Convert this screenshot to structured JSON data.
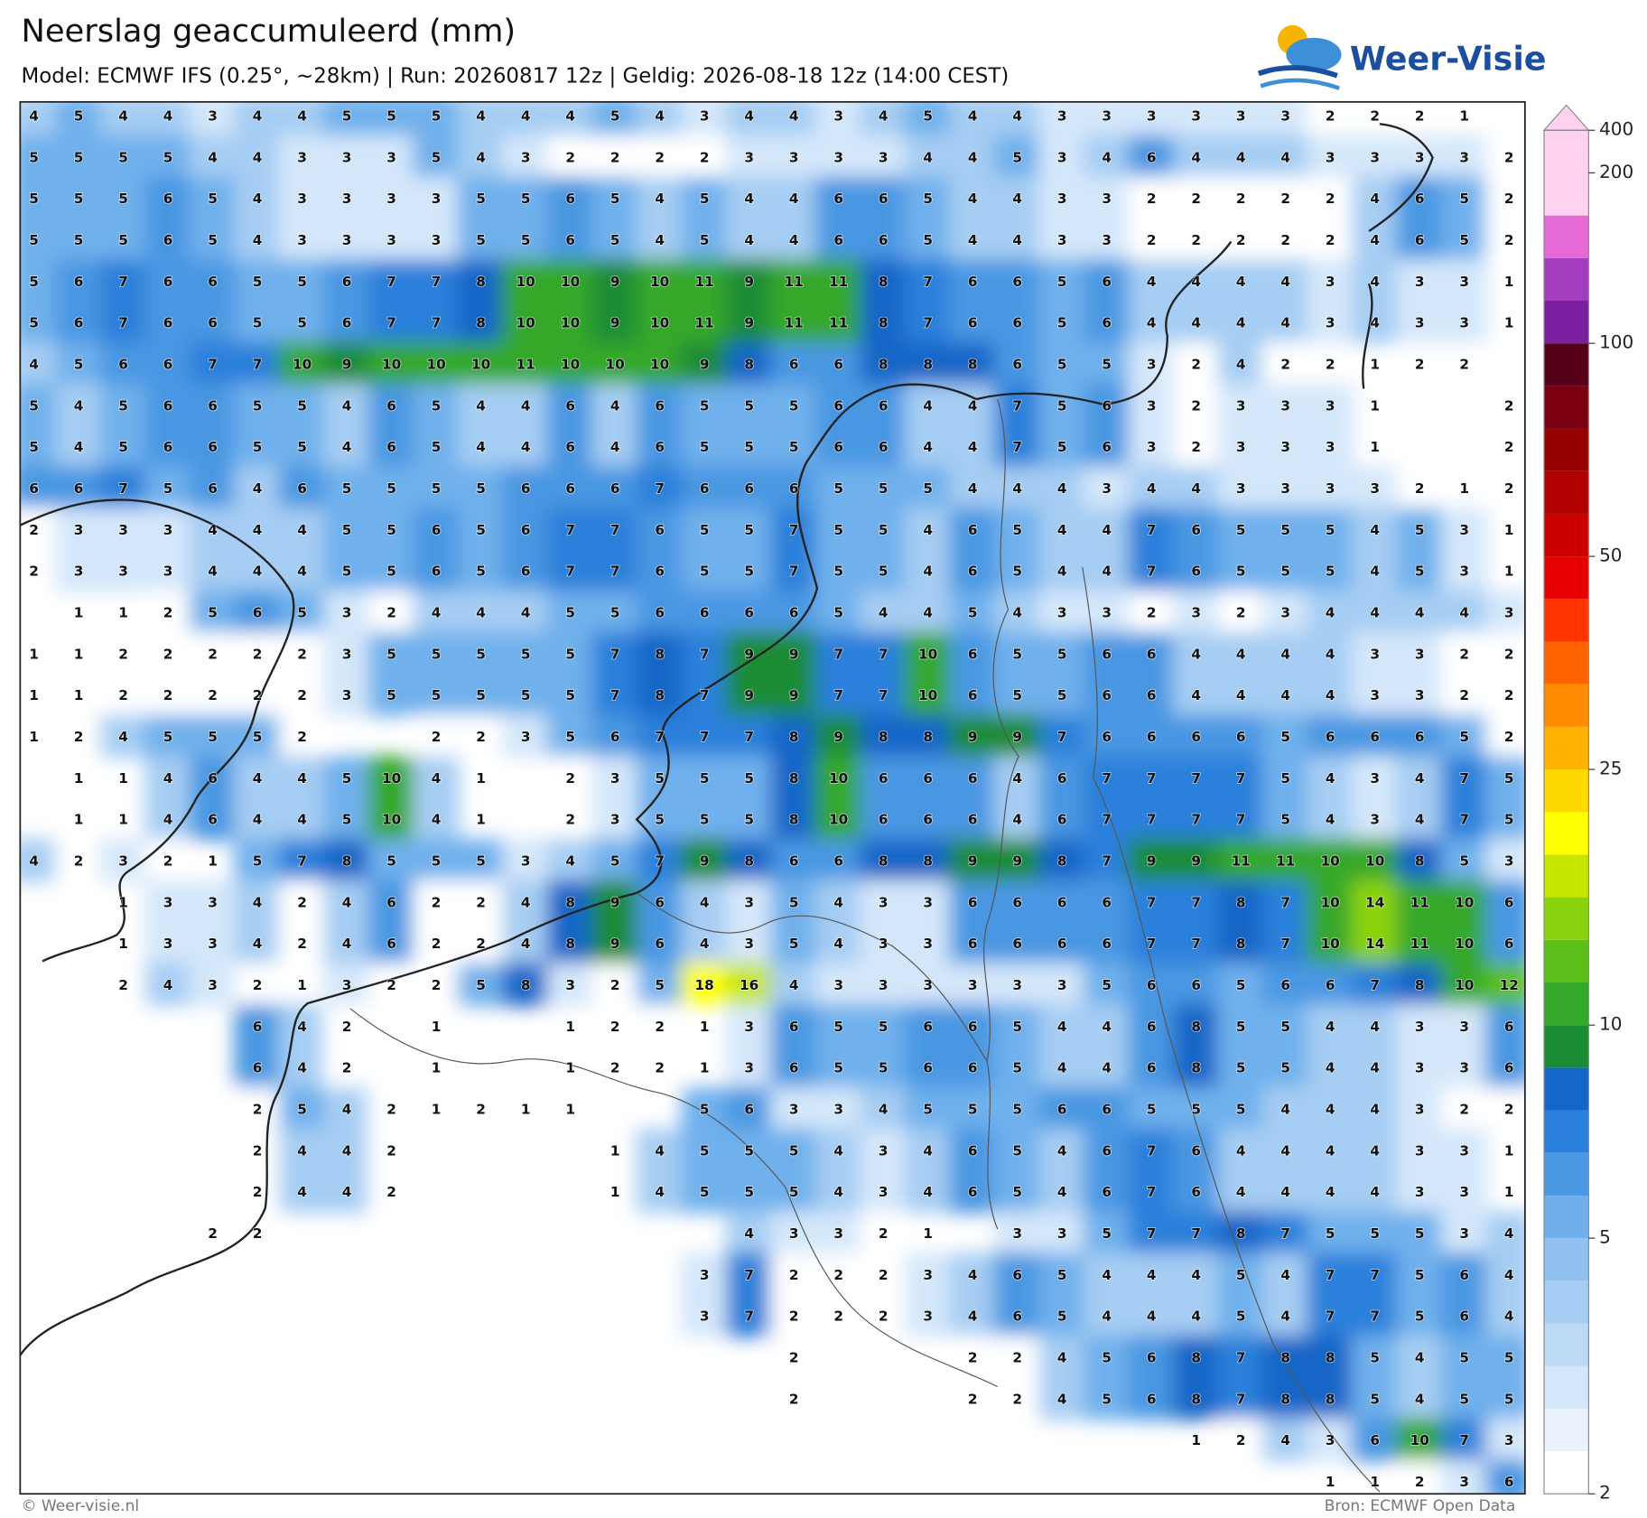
{
  "header": {
    "title": "Neerslag geaccumuleerd (mm)",
    "subtitle": "Model: ECMWF IFS (0.25°, ~28km)  |  Run: 20260817 12z  |  Geldig: 2026-08-18 12z (14:00 CEST)",
    "logo": "Weer-Visie"
  },
  "map": {
    "rows": [
      [
        4,
        5,
        4,
        4,
        3,
        4,
        4,
        5,
        5,
        5,
        4,
        4,
        4,
        5,
        4,
        3,
        4,
        4,
        3,
        4,
        5,
        4,
        4,
        3,
        3,
        3,
        3,
        3,
        3,
        2,
        2,
        2,
        1,
        null
      ],
      [
        5,
        5,
        5,
        5,
        4,
        4,
        3,
        3,
        3,
        5,
        4,
        3,
        2,
        2,
        2,
        2,
        3,
        3,
        3,
        3,
        4,
        4,
        5,
        3,
        4,
        6,
        4,
        4,
        4,
        3,
        3,
        3,
        3,
        2
      ],
      [
        5,
        5,
        5,
        6,
        5,
        4,
        3,
        3,
        3,
        3,
        5,
        5,
        6,
        5,
        4,
        5,
        4,
        4,
        6,
        6,
        5,
        4,
        4,
        3,
        3,
        2,
        2,
        2,
        2,
        2,
        4,
        6,
        5,
        2
      ],
      [
        5,
        5,
        5,
        6,
        5,
        4,
        3,
        3,
        3,
        3,
        5,
        5,
        6,
        5,
        4,
        5,
        4,
        4,
        6,
        6,
        5,
        4,
        4,
        3,
        3,
        2,
        2,
        2,
        2,
        2,
        4,
        6,
        5,
        2
      ],
      [
        5,
        6,
        7,
        6,
        6,
        5,
        5,
        6,
        7,
        7,
        8,
        10,
        10,
        9,
        10,
        11,
        9,
        11,
        11,
        8,
        7,
        6,
        6,
        5,
        6,
        4,
        4,
        4,
        4,
        3,
        4,
        3,
        3,
        1
      ],
      [
        5,
        6,
        7,
        6,
        6,
        5,
        5,
        6,
        7,
        7,
        8,
        10,
        10,
        9,
        10,
        11,
        9,
        11,
        11,
        8,
        7,
        6,
        6,
        5,
        6,
        4,
        4,
        4,
        4,
        3,
        4,
        3,
        3,
        1
      ],
      [
        4,
        5,
        6,
        6,
        7,
        7,
        10,
        9,
        10,
        10,
        10,
        11,
        10,
        10,
        10,
        9,
        8,
        6,
        6,
        8,
        8,
        8,
        6,
        5,
        5,
        3,
        2,
        4,
        2,
        2,
        1,
        2,
        2,
        null
      ],
      [
        5,
        4,
        5,
        6,
        6,
        5,
        5,
        4,
        6,
        5,
        4,
        4,
        6,
        4,
        6,
        5,
        5,
        5,
        6,
        6,
        4,
        4,
        7,
        5,
        6,
        3,
        2,
        3,
        3,
        3,
        1,
        null,
        null,
        2
      ],
      [
        5,
        4,
        5,
        6,
        6,
        5,
        5,
        4,
        6,
        5,
        4,
        4,
        6,
        4,
        6,
        5,
        5,
        5,
        6,
        6,
        4,
        4,
        7,
        5,
        6,
        3,
        2,
        3,
        3,
        3,
        1,
        null,
        null,
        2
      ],
      [
        6,
        6,
        7,
        5,
        6,
        4,
        6,
        5,
        5,
        5,
        5,
        6,
        6,
        6,
        7,
        6,
        6,
        6,
        5,
        5,
        5,
        4,
        4,
        4,
        3,
        4,
        4,
        3,
        3,
        3,
        3,
        2,
        1,
        2
      ],
      [
        2,
        3,
        3,
        3,
        4,
        4,
        4,
        5,
        5,
        6,
        5,
        6,
        7,
        7,
        6,
        5,
        5,
        7,
        5,
        5,
        4,
        6,
        5,
        4,
        4,
        7,
        6,
        5,
        5,
        5,
        4,
        5,
        3,
        1
      ],
      [
        2,
        3,
        3,
        3,
        4,
        4,
        4,
        5,
        5,
        6,
        5,
        6,
        7,
        7,
        6,
        5,
        5,
        7,
        5,
        5,
        4,
        6,
        5,
        4,
        4,
        7,
        6,
        5,
        5,
        5,
        4,
        5,
        3,
        1
      ],
      [
        null,
        1,
        1,
        2,
        5,
        6,
        5,
        3,
        2,
        4,
        4,
        4,
        5,
        5,
        6,
        6,
        6,
        6,
        5,
        4,
        4,
        5,
        4,
        3,
        3,
        2,
        3,
        2,
        3,
        4,
        4,
        4,
        4,
        3
      ],
      [
        1,
        1,
        2,
        2,
        2,
        2,
        2,
        3,
        5,
        5,
        5,
        5,
        5,
        7,
        8,
        7,
        9,
        9,
        7,
        7,
        10,
        6,
        5,
        5,
        6,
        6,
        4,
        4,
        4,
        4,
        3,
        3,
        2,
        2
      ],
      [
        1,
        1,
        2,
        2,
        2,
        2,
        2,
        3,
        5,
        5,
        5,
        5,
        5,
        7,
        8,
        7,
        9,
        9,
        7,
        7,
        10,
        6,
        5,
        5,
        6,
        6,
        4,
        4,
        4,
        4,
        3,
        3,
        2,
        2
      ],
      [
        1,
        2,
        4,
        5,
        5,
        5,
        2,
        null,
        null,
        2,
        2,
        3,
        5,
        6,
        7,
        7,
        7,
        8,
        9,
        8,
        8,
        9,
        9,
        7,
        6,
        6,
        6,
        6,
        5,
        6,
        6,
        6,
        5,
        2
      ],
      [
        null,
        1,
        1,
        4,
        6,
        4,
        4,
        5,
        10,
        4,
        1,
        null,
        2,
        3,
        5,
        5,
        5,
        8,
        10,
        6,
        6,
        6,
        4,
        6,
        7,
        7,
        7,
        7,
        5,
        4,
        3,
        4,
        7,
        5
      ],
      [
        null,
        1,
        1,
        4,
        6,
        4,
        4,
        5,
        10,
        4,
        1,
        null,
        2,
        3,
        5,
        5,
        5,
        8,
        10,
        6,
        6,
        6,
        4,
        6,
        7,
        7,
        7,
        7,
        5,
        4,
        3,
        4,
        7,
        5
      ],
      [
        4,
        2,
        3,
        2,
        1,
        5,
        7,
        8,
        5,
        5,
        5,
        3,
        4,
        5,
        7,
        9,
        8,
        6,
        6,
        8,
        8,
        9,
        9,
        8,
        7,
        9,
        9,
        11,
        11,
        10,
        10,
        8,
        5,
        3
      ],
      [
        null,
        null,
        1,
        3,
        3,
        4,
        2,
        4,
        6,
        2,
        2,
        4,
        8,
        9,
        6,
        4,
        3,
        5,
        4,
        3,
        3,
        6,
        6,
        6,
        6,
        7,
        7,
        8,
        7,
        10,
        14,
        11,
        10,
        6
      ],
      [
        null,
        null,
        1,
        3,
        3,
        4,
        2,
        4,
        6,
        2,
        2,
        4,
        8,
        9,
        6,
        4,
        3,
        5,
        4,
        3,
        3,
        6,
        6,
        6,
        6,
        7,
        7,
        8,
        7,
        10,
        14,
        11,
        10,
        6
      ],
      [
        null,
        null,
        2,
        4,
        3,
        2,
        1,
        3,
        2,
        2,
        5,
        8,
        3,
        2,
        5,
        18,
        16,
        4,
        3,
        3,
        3,
        3,
        3,
        3,
        5,
        6,
        6,
        5,
        6,
        6,
        7,
        8,
        10,
        12
      ],
      [
        null,
        null,
        null,
        null,
        null,
        6,
        4,
        2,
        null,
        1,
        null,
        null,
        1,
        2,
        2,
        1,
        3,
        6,
        5,
        5,
        6,
        6,
        5,
        4,
        4,
        6,
        8,
        5,
        5,
        4,
        4,
        3,
        3,
        6
      ],
      [
        null,
        null,
        null,
        null,
        null,
        6,
        4,
        2,
        null,
        1,
        null,
        null,
        1,
        2,
        2,
        1,
        3,
        6,
        5,
        5,
        6,
        6,
        5,
        4,
        4,
        6,
        8,
        5,
        5,
        4,
        4,
        3,
        3,
        6
      ],
      [
        null,
        null,
        null,
        null,
        null,
        2,
        5,
        4,
        2,
        1,
        2,
        1,
        1,
        null,
        null,
        5,
        6,
        3,
        3,
        4,
        5,
        5,
        5,
        6,
        6,
        5,
        5,
        5,
        4,
        4,
        4,
        3,
        2,
        2
      ],
      [
        null,
        null,
        null,
        null,
        null,
        2,
        4,
        4,
        2,
        null,
        null,
        null,
        null,
        1,
        4,
        5,
        5,
        5,
        4,
        3,
        4,
        6,
        5,
        4,
        6,
        7,
        6,
        4,
        4,
        4,
        4,
        3,
        3,
        1
      ],
      [
        null,
        null,
        null,
        null,
        null,
        2,
        4,
        4,
        2,
        null,
        null,
        null,
        null,
        1,
        4,
        5,
        5,
        5,
        4,
        3,
        4,
        6,
        5,
        4,
        6,
        7,
        6,
        4,
        4,
        4,
        4,
        3,
        3,
        1
      ],
      [
        null,
        null,
        null,
        null,
        2,
        2,
        null,
        null,
        null,
        null,
        null,
        null,
        null,
        null,
        null,
        null,
        4,
        3,
        3,
        2,
        1,
        null,
        3,
        3,
        5,
        7,
        7,
        8,
        7,
        5,
        5,
        5,
        3,
        4
      ],
      [
        null,
        null,
        null,
        null,
        null,
        null,
        null,
        null,
        null,
        null,
        null,
        null,
        null,
        null,
        null,
        3,
        7,
        2,
        2,
        2,
        3,
        4,
        6,
        5,
        4,
        4,
        4,
        5,
        4,
        7,
        7,
        5,
        6,
        4
      ],
      [
        null,
        null,
        null,
        null,
        null,
        null,
        null,
        null,
        null,
        null,
        null,
        null,
        null,
        null,
        null,
        3,
        7,
        2,
        2,
        2,
        3,
        4,
        6,
        5,
        4,
        4,
        4,
        5,
        4,
        7,
        7,
        5,
        6,
        4
      ],
      [
        null,
        null,
        null,
        null,
        null,
        null,
        null,
        null,
        null,
        null,
        null,
        null,
        null,
        null,
        null,
        null,
        null,
        2,
        null,
        null,
        null,
        2,
        2,
        4,
        5,
        6,
        8,
        7,
        8,
        8,
        5,
        4,
        5,
        5
      ],
      [
        null,
        null,
        null,
        null,
        null,
        null,
        null,
        null,
        null,
        null,
        null,
        null,
        null,
        null,
        null,
        null,
        null,
        2,
        null,
        null,
        null,
        2,
        2,
        4,
        5,
        6,
        8,
        7,
        8,
        8,
        5,
        4,
        5,
        5
      ],
      [
        null,
        null,
        null,
        null,
        null,
        null,
        null,
        null,
        null,
        null,
        null,
        null,
        null,
        null,
        null,
        null,
        null,
        null,
        null,
        null,
        null,
        null,
        null,
        null,
        null,
        null,
        1,
        2,
        4,
        3,
        6,
        10,
        7,
        3
      ],
      [
        null,
        null,
        null,
        null,
        null,
        null,
        null,
        null,
        null,
        null,
        null,
        null,
        null,
        null,
        null,
        null,
        null,
        null,
        null,
        null,
        null,
        null,
        null,
        null,
        null,
        null,
        null,
        null,
        null,
        1,
        1,
        2,
        3,
        6
      ]
    ]
  },
  "colorbar": {
    "scale": "log",
    "levels": [
      2,
      2.5,
      3,
      3.5,
      4,
      4.5,
      5,
      6,
      7,
      8,
      9,
      10,
      12,
      14,
      16,
      18,
      20,
      25,
      30,
      35,
      40,
      45,
      50,
      60,
      70,
      80,
      90,
      100,
      125,
      150,
      175,
      200,
      400
    ],
    "colors": [
      "#ffffff",
      "#eaf3fc",
      "#d4e7fa",
      "#bcdaf6",
      "#a6cdf3",
      "#8fc0f0",
      "#6fb0ec",
      "#4a97e2",
      "#2a80da",
      "#1466c8",
      "#1a8c34",
      "#34a82a",
      "#5bbf1a",
      "#8cd30f",
      "#c6e600",
      "#ffff00",
      "#ffd800",
      "#ffb200",
      "#ff8c00",
      "#ff6400",
      "#ff3400",
      "#e60000",
      "#cc0000",
      "#b00000",
      "#950000",
      "#7a0010",
      "#560019",
      "#7a1fa0",
      "#a43cc0",
      "#e46ad6",
      "#ffd2f0",
      "#ffd2f0"
    ],
    "ticks": [
      2,
      5,
      10,
      25,
      50,
      100,
      200,
      400
    ]
  },
  "footer": {
    "copyright": "© Weer-visie.nl",
    "source": "Bron: ECMWF Open Data"
  }
}
